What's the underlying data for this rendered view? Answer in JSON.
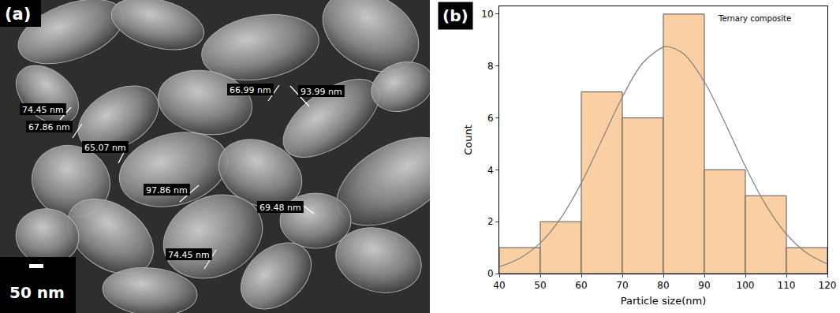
{
  "image_panel": {
    "panel": "(a)",
    "scale_bar": "50 nm",
    "measurements": [
      "74.45 nm",
      "67.86 nm",
      "65.07 nm",
      "66.99 nm",
      "93.99 nm",
      "97.86 nm",
      "69.48 nm",
      "74.45 nm"
    ]
  },
  "chart_data": {
    "type": "histogram",
    "panel": "(b)",
    "annotations": [
      "Ternary composite"
    ],
    "x_label": "Particle size(nm)",
    "y_label": "Count",
    "bins": [
      40,
      50,
      60,
      70,
      80,
      90,
      100,
      110,
      120
    ],
    "series": [
      {
        "type": "bar",
        "color": "#fbcfa4",
        "values": [
          1,
          2,
          7,
          6,
          10,
          4,
          3,
          1
        ]
      },
      {
        "type": "line",
        "color": "#808080",
        "x": [
          40,
          45,
          50,
          55,
          60,
          65,
          70,
          75,
          80,
          81,
          85,
          90,
          95,
          100,
          105,
          110,
          115,
          120
        ],
        "values": [
          0.26,
          0.59,
          1.18,
          2.14,
          3.49,
          5.14,
          6.8,
          8.12,
          8.73,
          8.75,
          8.46,
          7.39,
          5.82,
          4.13,
          2.64,
          1.52,
          0.79,
          0.37
        ]
      }
    ],
    "xlim": [
      40,
      120
    ],
    "xticks": [
      40,
      50,
      60,
      70,
      80,
      90,
      100,
      110,
      120
    ],
    "ylim": [
      0,
      10.3
    ],
    "yticks": [
      0,
      2,
      4,
      6,
      8,
      10
    ],
    "grid": false
  }
}
